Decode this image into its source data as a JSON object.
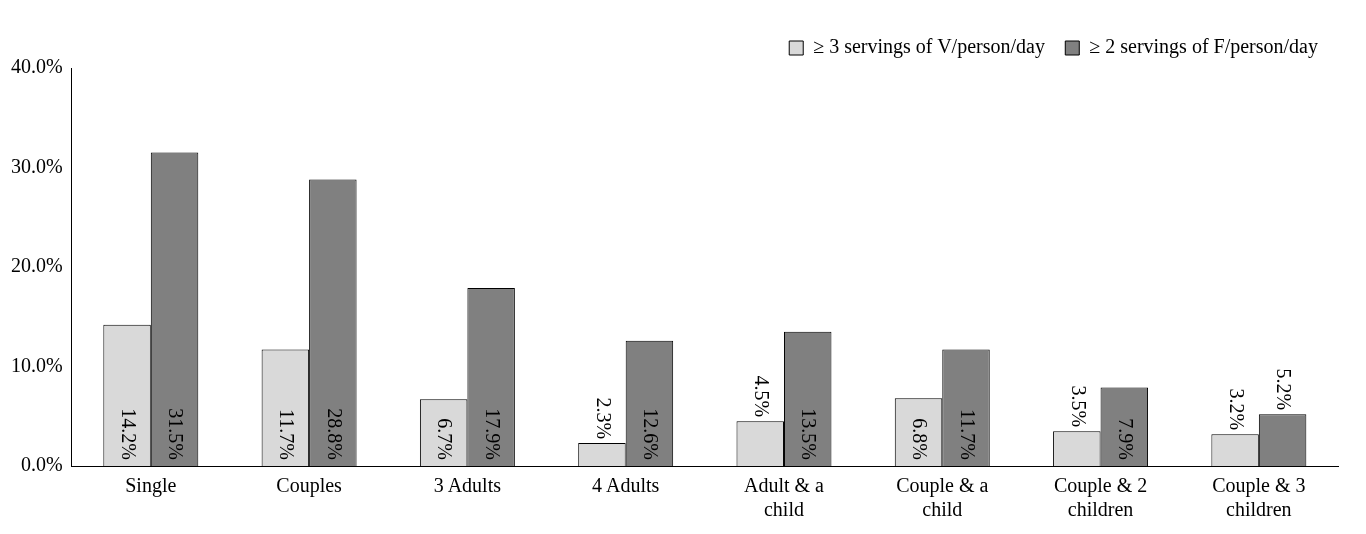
{
  "chart_data": {
    "type": "bar",
    "categories": [
      "Single",
      "Couples",
      "3 Adults",
      "4 Adults",
      "Adult & a child",
      "Couple & a child",
      "Couple & 2 children",
      "Couple & 3 children"
    ],
    "series": [
      {
        "name": "≥ 3 servings of V/person/day",
        "color": "#d9d9d9",
        "values": [
          14.2,
          11.7,
          6.7,
          2.3,
          4.5,
          6.8,
          3.5,
          3.2
        ],
        "value_labels": [
          "14.2%",
          "11.7%",
          "6.7%",
          "2.3%",
          "4.5%",
          "6.8%",
          "3.5%",
          "3.2%"
        ]
      },
      {
        "name": "≥ 2 servings of F/person/day",
        "color": "#808080",
        "values": [
          31.5,
          28.8,
          17.9,
          12.6,
          13.5,
          11.7,
          7.9,
          5.2
        ],
        "value_labels": [
          "31.5%",
          "28.8%",
          "17.9%",
          "12.6%",
          "13.5%",
          "11.7%",
          "7.9%",
          "5.2%"
        ]
      }
    ],
    "ylim": [
      0,
      40
    ],
    "yticks": [
      {
        "value": 0,
        "label": "0.0%"
      },
      {
        "value": 10,
        "label": "10.0%"
      },
      {
        "value": 20,
        "label": "20.0%"
      },
      {
        "value": 30,
        "label": "30.0%"
      },
      {
        "value": 40,
        "label": "40.0%"
      }
    ],
    "grid": false,
    "legend": "top right"
  }
}
